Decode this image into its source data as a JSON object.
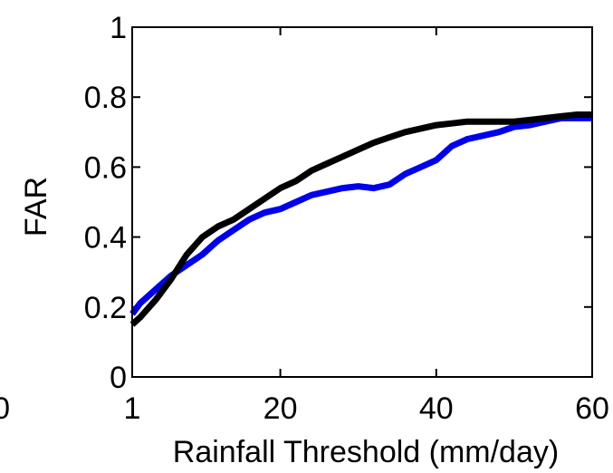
{
  "chart_data": {
    "type": "line",
    "xlabel": "Rainfall Threshold (mm/day)",
    "ylabel": "FAR",
    "xlim": [
      1,
      60
    ],
    "ylim": [
      0,
      1
    ],
    "x_ticks": [
      {
        "value": 1,
        "label": "1"
      },
      {
        "value": 20,
        "label": "20"
      },
      {
        "value": 40,
        "label": "40"
      },
      {
        "value": 60,
        "label": "60"
      }
    ],
    "y_ticks": [
      {
        "value": 0,
        "label": "0"
      },
      {
        "value": 0.2,
        "label": "0.2"
      },
      {
        "value": 0.4,
        "label": "0.4"
      },
      {
        "value": 0.6,
        "label": "0.6"
      },
      {
        "value": 0.8,
        "label": "0.8"
      },
      {
        "value": 1,
        "label": "1"
      }
    ],
    "clipped_left_label": "0",
    "grid": false,
    "series": [
      {
        "color": "#0000ee",
        "x": [
          1,
          2,
          4,
          6,
          8,
          10,
          12,
          14,
          16,
          18,
          20,
          22,
          24,
          26,
          28,
          30,
          32,
          34,
          36,
          38,
          40,
          42,
          44,
          46,
          48,
          50,
          52,
          54,
          56,
          58,
          60
        ],
        "y": [
          0.18,
          0.21,
          0.25,
          0.29,
          0.32,
          0.35,
          0.39,
          0.42,
          0.45,
          0.47,
          0.48,
          0.5,
          0.52,
          0.53,
          0.54,
          0.545,
          0.54,
          0.55,
          0.58,
          0.6,
          0.62,
          0.66,
          0.68,
          0.69,
          0.7,
          0.715,
          0.72,
          0.73,
          0.74,
          0.74,
          0.74
        ]
      },
      {
        "color": "#000000",
        "x": [
          1,
          2,
          4,
          6,
          8,
          10,
          12,
          14,
          16,
          18,
          20,
          22,
          24,
          26,
          28,
          30,
          32,
          34,
          36,
          38,
          40,
          42,
          44,
          46,
          48,
          50,
          52,
          54,
          56,
          58,
          60
        ],
        "y": [
          0.15,
          0.17,
          0.22,
          0.28,
          0.35,
          0.4,
          0.43,
          0.45,
          0.48,
          0.51,
          0.54,
          0.56,
          0.59,
          0.61,
          0.63,
          0.65,
          0.67,
          0.685,
          0.7,
          0.71,
          0.72,
          0.725,
          0.73,
          0.73,
          0.73,
          0.73,
          0.735,
          0.74,
          0.745,
          0.75,
          0.75
        ]
      }
    ]
  }
}
